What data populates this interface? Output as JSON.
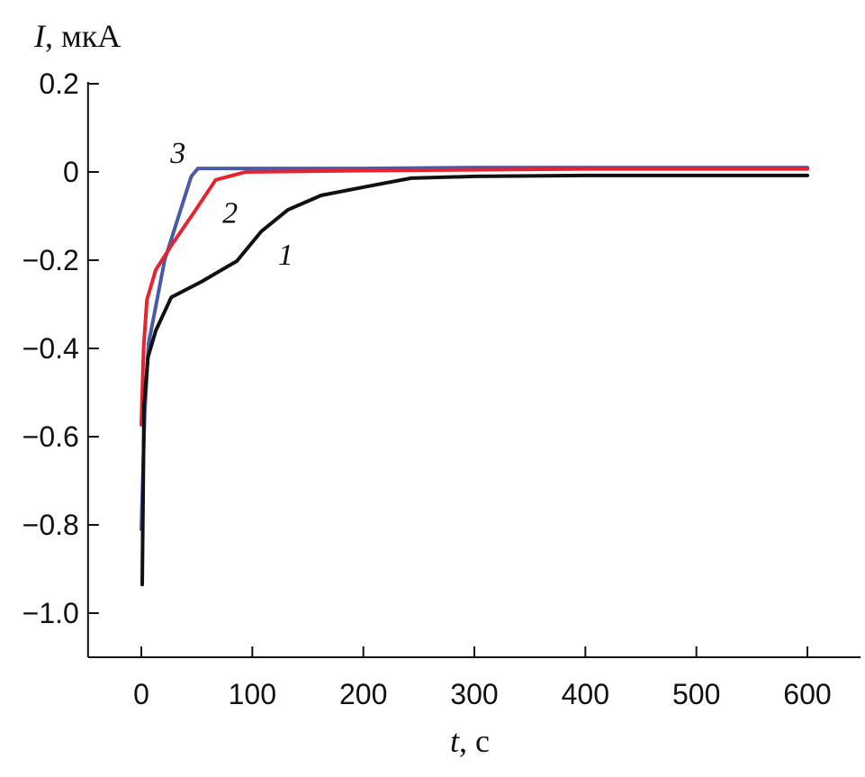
{
  "chart_data": {
    "type": "line",
    "ylabel_var": "I",
    "ylabel_unit": ", мкА",
    "xlabel_var": "t",
    "xlabel_unit": ", с",
    "xlim": [
      -48,
      648
    ],
    "ylim": [
      -1.1,
      0.2
    ],
    "xticks": [
      0,
      100,
      200,
      300,
      400,
      500,
      600
    ],
    "xtick_labels": [
      "0",
      "100",
      "200",
      "300",
      "400",
      "500",
      "600"
    ],
    "yticks": [
      0.2,
      0,
      -0.2,
      -0.4,
      -0.6,
      -0.8,
      -1.0
    ],
    "ytick_labels": [
      "0.2",
      "0",
      "−0.2",
      "−0.4",
      "−0.6",
      "−0.8",
      "−1.0"
    ],
    "grid": false,
    "series": [
      {
        "name": "1",
        "color": "#111111",
        "x": [
          0.8,
          2.4,
          6,
          13,
          27,
          54,
          86,
          108,
          132,
          162,
          203,
          243,
          300,
          400,
          500,
          600
        ],
        "y": [
          -0.935,
          -0.53,
          -0.42,
          -0.36,
          -0.284,
          -0.249,
          -0.202,
          -0.135,
          -0.086,
          -0.053,
          -0.033,
          -0.014,
          -0.01,
          -0.008,
          -0.008,
          -0.008
        ]
      },
      {
        "name": "2",
        "color": "#e8232e",
        "x": [
          0,
          2,
          5,
          13,
          27,
          49,
          67,
          94,
          200,
          300,
          400,
          500,
          600
        ],
        "y": [
          -0.573,
          -0.4,
          -0.29,
          -0.222,
          -0.167,
          -0.086,
          -0.018,
          0.0,
          0.003,
          0.005,
          0.007,
          0.007,
          0.007
        ]
      },
      {
        "name": "3",
        "color": "#4a5aa8",
        "x": [
          0,
          3,
          6.5,
          21,
          45,
          51,
          100,
          200,
          300,
          400,
          500,
          600
        ],
        "y": [
          -0.81,
          -0.55,
          -0.39,
          -0.2,
          -0.01,
          0.008,
          0.008,
          0.008,
          0.01,
          0.01,
          0.01,
          0.01
        ]
      }
    ],
    "curve_labels": [
      {
        "text": "3",
        "t": 33,
        "I": 0.02
      },
      {
        "text": "2",
        "t": 80,
        "I": -0.115
      },
      {
        "text": "1",
        "t": 130,
        "I": -0.21
      }
    ]
  }
}
